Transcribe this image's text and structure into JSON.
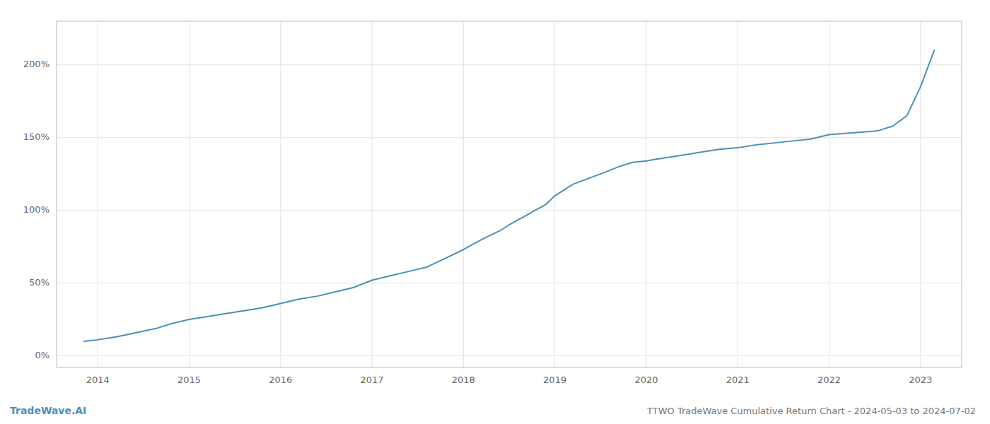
{
  "chart_data": {
    "type": "line",
    "title": "TTWO TradeWave Cumulative Return Chart - 2024-05-03 to 2024-07-02",
    "annotations": [
      "TradeWave.AI"
    ],
    "x": [
      2013.85,
      2014.0,
      2014.1,
      2014.2,
      2014.35,
      2014.5,
      2014.65,
      2014.8,
      2015.0,
      2015.2,
      2015.4,
      2015.6,
      2015.8,
      2016.0,
      2016.2,
      2016.4,
      2016.6,
      2016.8,
      2017.0,
      2017.2,
      2017.4,
      2017.6,
      2017.8,
      2018.0,
      2018.2,
      2018.4,
      2018.5,
      2018.7,
      2018.9,
      2019.0,
      2019.2,
      2019.5,
      2019.7,
      2019.85,
      2020.0,
      2020.1,
      2020.2,
      2020.4,
      2020.6,
      2020.8,
      2021.0,
      2021.2,
      2021.5,
      2021.8,
      2022.0,
      2022.1,
      2022.2,
      2022.3,
      2022.4,
      2022.5,
      2022.55,
      2022.7,
      2022.85,
      2023.0,
      2023.15
    ],
    "values": [
      10,
      11,
      12,
      13,
      15,
      17,
      19,
      22,
      25,
      27,
      29,
      31,
      33,
      36,
      39,
      41,
      44,
      47,
      52,
      55,
      58,
      61,
      67,
      73,
      80,
      86,
      90,
      97,
      104,
      110,
      118,
      125,
      130,
      133,
      134,
      135,
      136,
      138,
      140,
      142,
      143,
      145,
      147,
      149,
      152,
      152.5,
      153,
      153.5,
      154,
      154.5,
      155,
      158,
      165,
      185,
      210
    ],
    "color": "#4a90b8",
    "xlim": [
      2013.55,
      2023.45
    ],
    "xticks": [
      2014,
      2015,
      2016,
      2017,
      2018,
      2019,
      2020,
      2021,
      2022,
      2023
    ],
    "ylim": [
      -8,
      230
    ],
    "yticks": [
      {
        "value": 0,
        "label": "0%"
      },
      {
        "value": 50,
        "label": "50%"
      },
      {
        "value": 100,
        "label": "100%"
      },
      {
        "value": 150,
        "label": "150%"
      },
      {
        "value": 200,
        "label": "200%"
      }
    ],
    "grid": true
  }
}
